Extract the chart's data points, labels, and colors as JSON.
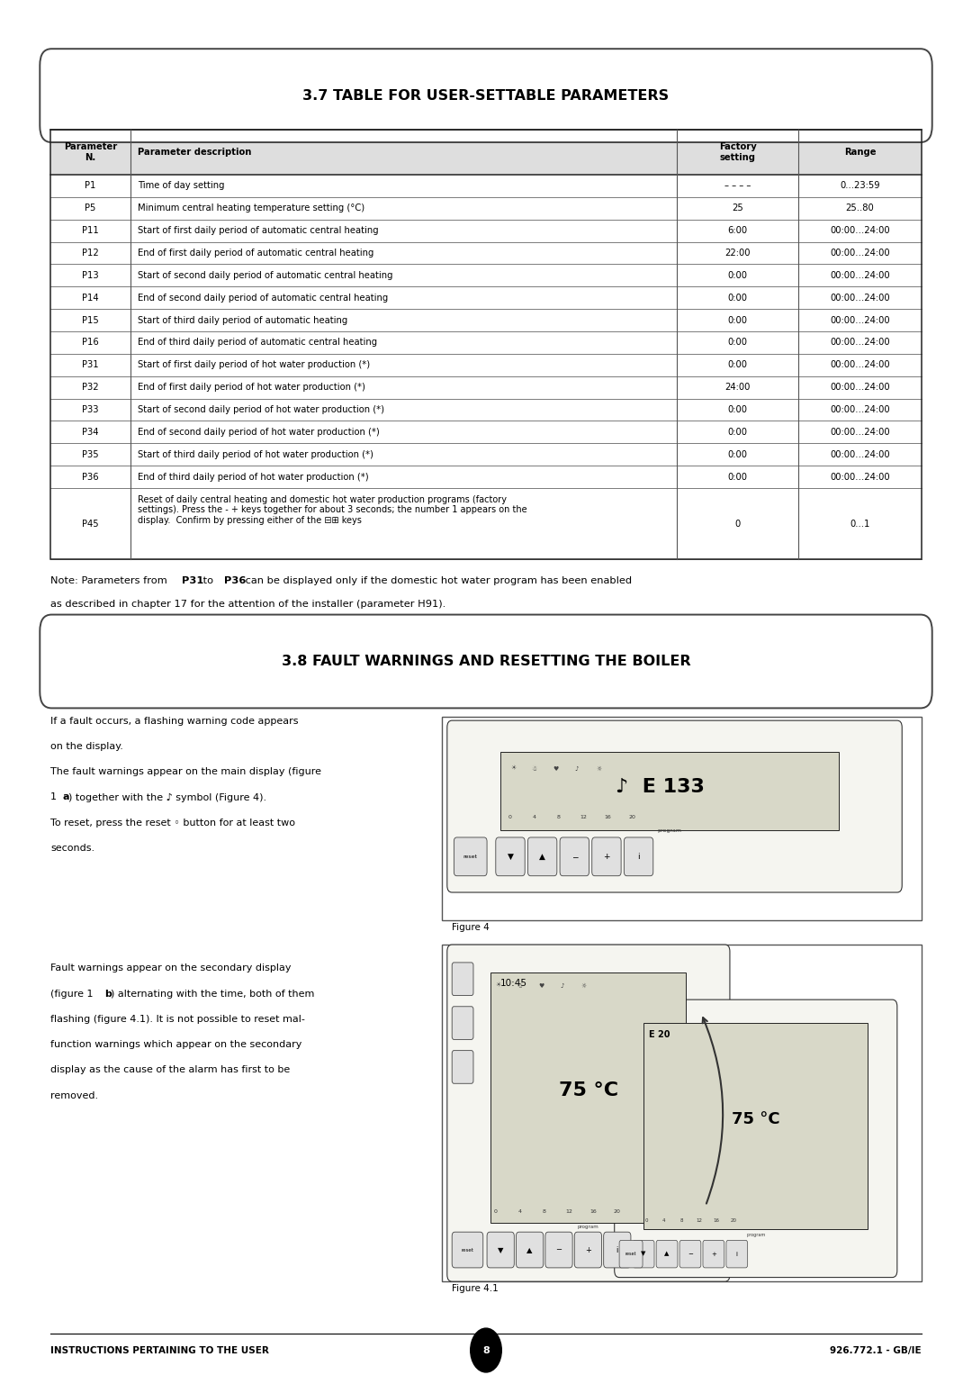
{
  "page_width": 10.8,
  "page_height": 15.27,
  "bg_color": "#ffffff",
  "title1": "3.7 TABLE FOR USER-SETTABLE PARAMETERS",
  "title2": "3.8 FAULT WARNINGS AND RESETTING THE BOILER",
  "table_col_props": [
    0.092,
    0.627,
    0.14,
    0.141
  ],
  "table_headers": [
    "Parameter\nN.",
    "Parameter description",
    "Factory\nsetting",
    "Range"
  ],
  "table_rows": [
    [
      "P1",
      "Time of day setting",
      "– – – –",
      "0...23:59"
    ],
    [
      "P5",
      "Minimum central heating temperature setting (°C)",
      "25",
      "25..80"
    ],
    [
      "P11",
      "Start of first daily period of automatic central heating",
      "6:00",
      "00:00…24:00"
    ],
    [
      "P12",
      "End of first daily period of automatic central heating",
      "22:00",
      "00:00…24:00"
    ],
    [
      "P13",
      "Start of second daily period of automatic central heating",
      "0:00",
      "00:00…24:00"
    ],
    [
      "P14",
      "End of second daily period of automatic central heating",
      "0:00",
      "00:00…24:00"
    ],
    [
      "P15",
      "Start of third daily period of automatic heating",
      "0:00",
      "00:00…24:00"
    ],
    [
      "P16",
      "End of third daily period of automatic central heating",
      "0:00",
      "00:00…24:00"
    ],
    [
      "P31",
      "Start of first daily period of hot water production (*)",
      "0:00",
      "00:00…24:00"
    ],
    [
      "P32",
      "End of first daily period of hot water production (*)",
      "24:00",
      "00:00…24:00"
    ],
    [
      "P33",
      "Start of second daily period of hot water production (*)",
      "0:00",
      "00:00…24:00"
    ],
    [
      "P34",
      "End of second daily period of hot water production (*)",
      "0:00",
      "00:00…24:00"
    ],
    [
      "P35",
      "Start of third daily period of hot water production (*)",
      "0:00",
      "00:00…24:00"
    ],
    [
      "P36",
      "End of third daily period of hot water production (*)",
      "0:00",
      "00:00…24:00"
    ],
    [
      "P45",
      "Reset of daily central heating and domestic hot water production programs (factory\nsettings). Press the - + keys together for about 3 seconds; the number 1 appears on the\ndisplay.  Confirm by pressing either of the ⊟⊞ keys",
      "0",
      "0...1"
    ]
  ],
  "note_line1": "Note: Parameters from ",
  "note_bold1": "P31",
  "note_mid1": " to ",
  "note_bold2": "P36",
  "note_line1_end": " can be displayed only if the domestic hot water program has been enabled",
  "note_line2": "as described in chapter 17 for the attention of the installer (parameter H91).",
  "fault1_lines": [
    "If a fault occurs, a flashing warning code appears",
    "on the display.",
    "The fault warnings appear on the main display (figure",
    "1 â) together with the ♪ symbol (Figure 4).",
    "To reset, press the reset ◦ button for at least two",
    "seconds."
  ],
  "fault2_lines": [
    "Fault warnings appear on the secondary display",
    "(figure 1 â) alternating with the time, both of them",
    "flashing (figure 4.1). It is not possible to reset mal-",
    "function warnings which appear on the secondary",
    "display as the cause of the alarm has first to be",
    "removed."
  ],
  "footer_left": "INSTRUCTIONS PERTAINING TO THE USER",
  "footer_right": "926.772.1 - GB/IE",
  "footer_page": "8"
}
